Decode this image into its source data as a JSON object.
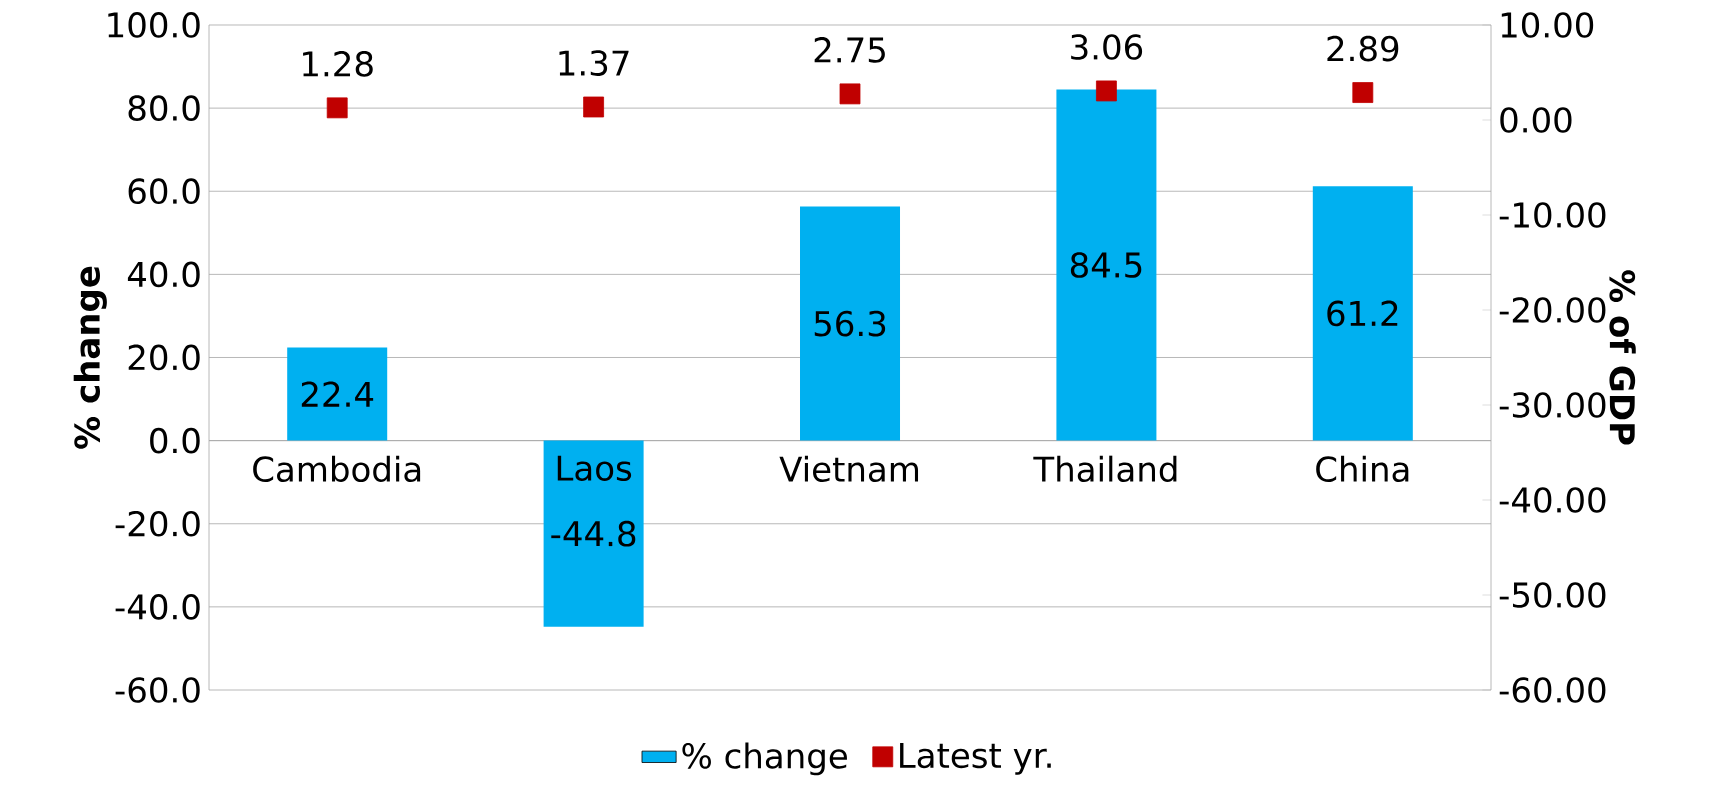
{
  "chart_data": {
    "type": "bar",
    "categories": [
      "Cambodia",
      "Laos",
      "Vietnam",
      "Thailand",
      "China"
    ],
    "series": [
      {
        "name": "% change",
        "color": "#00b0f0",
        "values": [
          22.4,
          -44.8,
          56.3,
          84.5,
          61.2
        ]
      },
      {
        "name": "Latest yr.",
        "type": "scatter",
        "axis": "y2",
        "color": "#c00000",
        "marker": "square",
        "values": [
          1.28,
          1.37,
          2.75,
          3.06,
          2.89
        ]
      }
    ],
    "ylabel": "% change",
    "y2label": "% of GDP",
    "ylim": [
      -60,
      100
    ],
    "yticks": [
      {
        "value": -60,
        "label": "-60.0"
      },
      {
        "value": -40,
        "label": "-40.0"
      },
      {
        "value": -20,
        "label": "-20.0"
      },
      {
        "value": 0,
        "label": "0.0"
      },
      {
        "value": 20,
        "label": "20.0"
      },
      {
        "value": 40,
        "label": "40.0"
      },
      {
        "value": 60,
        "label": "60.0"
      },
      {
        "value": 80,
        "label": "80.0"
      },
      {
        "value": 100,
        "label": "100.0"
      }
    ],
    "y2lim": [
      -60,
      10
    ],
    "y2ticks": [
      {
        "value": -60,
        "label": "-60.00"
      },
      {
        "value": -50,
        "label": "-50.00"
      },
      {
        "value": -40,
        "label": "-40.00"
      },
      {
        "value": -30,
        "label": "-30.00"
      },
      {
        "value": -20,
        "label": "-20.00"
      },
      {
        "value": -10,
        "label": "-10.00"
      },
      {
        "value": 0,
        "label": "0.00"
      },
      {
        "value": 10,
        "label": "10.00"
      }
    ],
    "data_labels": true,
    "grid": "y",
    "legend": "bottom"
  }
}
